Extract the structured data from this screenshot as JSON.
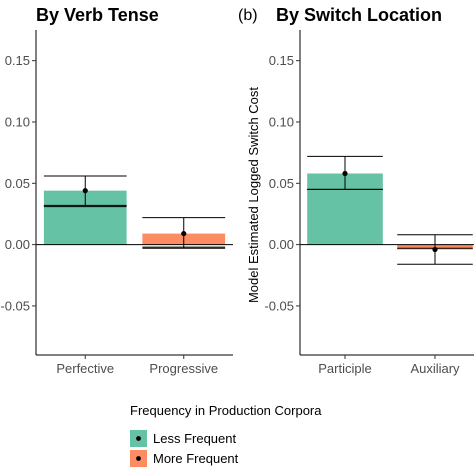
{
  "chart_data": [
    {
      "type": "bar",
      "panel_tag": "",
      "title": "By Verb Tense",
      "xlabel": "",
      "ylabel": "",
      "ylim": [
        -0.09,
        0.175
      ],
      "yticks": [
        -0.05,
        0.0,
        0.05,
        0.1,
        0.15
      ],
      "ytick_labels": [
        "-0.05",
        "0.00",
        "0.05",
        "0.10",
        "0.15"
      ],
      "categories": [
        "Perfective",
        "Progressive"
      ],
      "series": [
        {
          "name": "Less Frequent",
          "values": [
            0.044,
            null
          ],
          "estimate": [
            0.032,
            null
          ],
          "ci_low": [
            0.031,
            null
          ],
          "ci_high": [
            0.056,
            null
          ]
        },
        {
          "name": "More Frequent",
          "values": [
            null,
            0.009
          ],
          "estimate": [
            null,
            -0.002
          ],
          "ci_low": [
            null,
            -0.003
          ],
          "ci_high": [
            null,
            0.022
          ]
        }
      ],
      "grid": false
    },
    {
      "type": "bar",
      "panel_tag": "(b)",
      "title": "By Switch Location",
      "xlabel": "",
      "ylabel": "Model Estimated Logged Switch Cost",
      "ylim": [
        -0.09,
        0.175
      ],
      "yticks": [
        -0.05,
        0.0,
        0.05,
        0.1,
        0.15
      ],
      "ytick_labels": [
        "-0.05",
        "0.00",
        "0.05",
        "0.10",
        "0.15"
      ],
      "categories": [
        "Participle",
        "Auxiliary"
      ],
      "series": [
        {
          "name": "Less Frequent",
          "values": [
            0.058,
            null
          ],
          "estimate": [
            0.045,
            null
          ],
          "ci_low": [
            0.045,
            null
          ],
          "ci_high": [
            0.072,
            null
          ]
        },
        {
          "name": "More Frequent",
          "values": [
            null,
            -0.004
          ],
          "estimate": [
            null,
            -0.003
          ],
          "ci_low": [
            null,
            -0.016
          ],
          "ci_high": [
            null,
            0.008
          ]
        }
      ],
      "grid": false
    }
  ],
  "legend": {
    "title": "Frequency in Production Corpora",
    "placement": "bottom",
    "items": [
      {
        "label": "Less Frequent",
        "color": "#66c2a5"
      },
      {
        "label": "More Frequent",
        "color": "#fc8d62"
      }
    ]
  }
}
